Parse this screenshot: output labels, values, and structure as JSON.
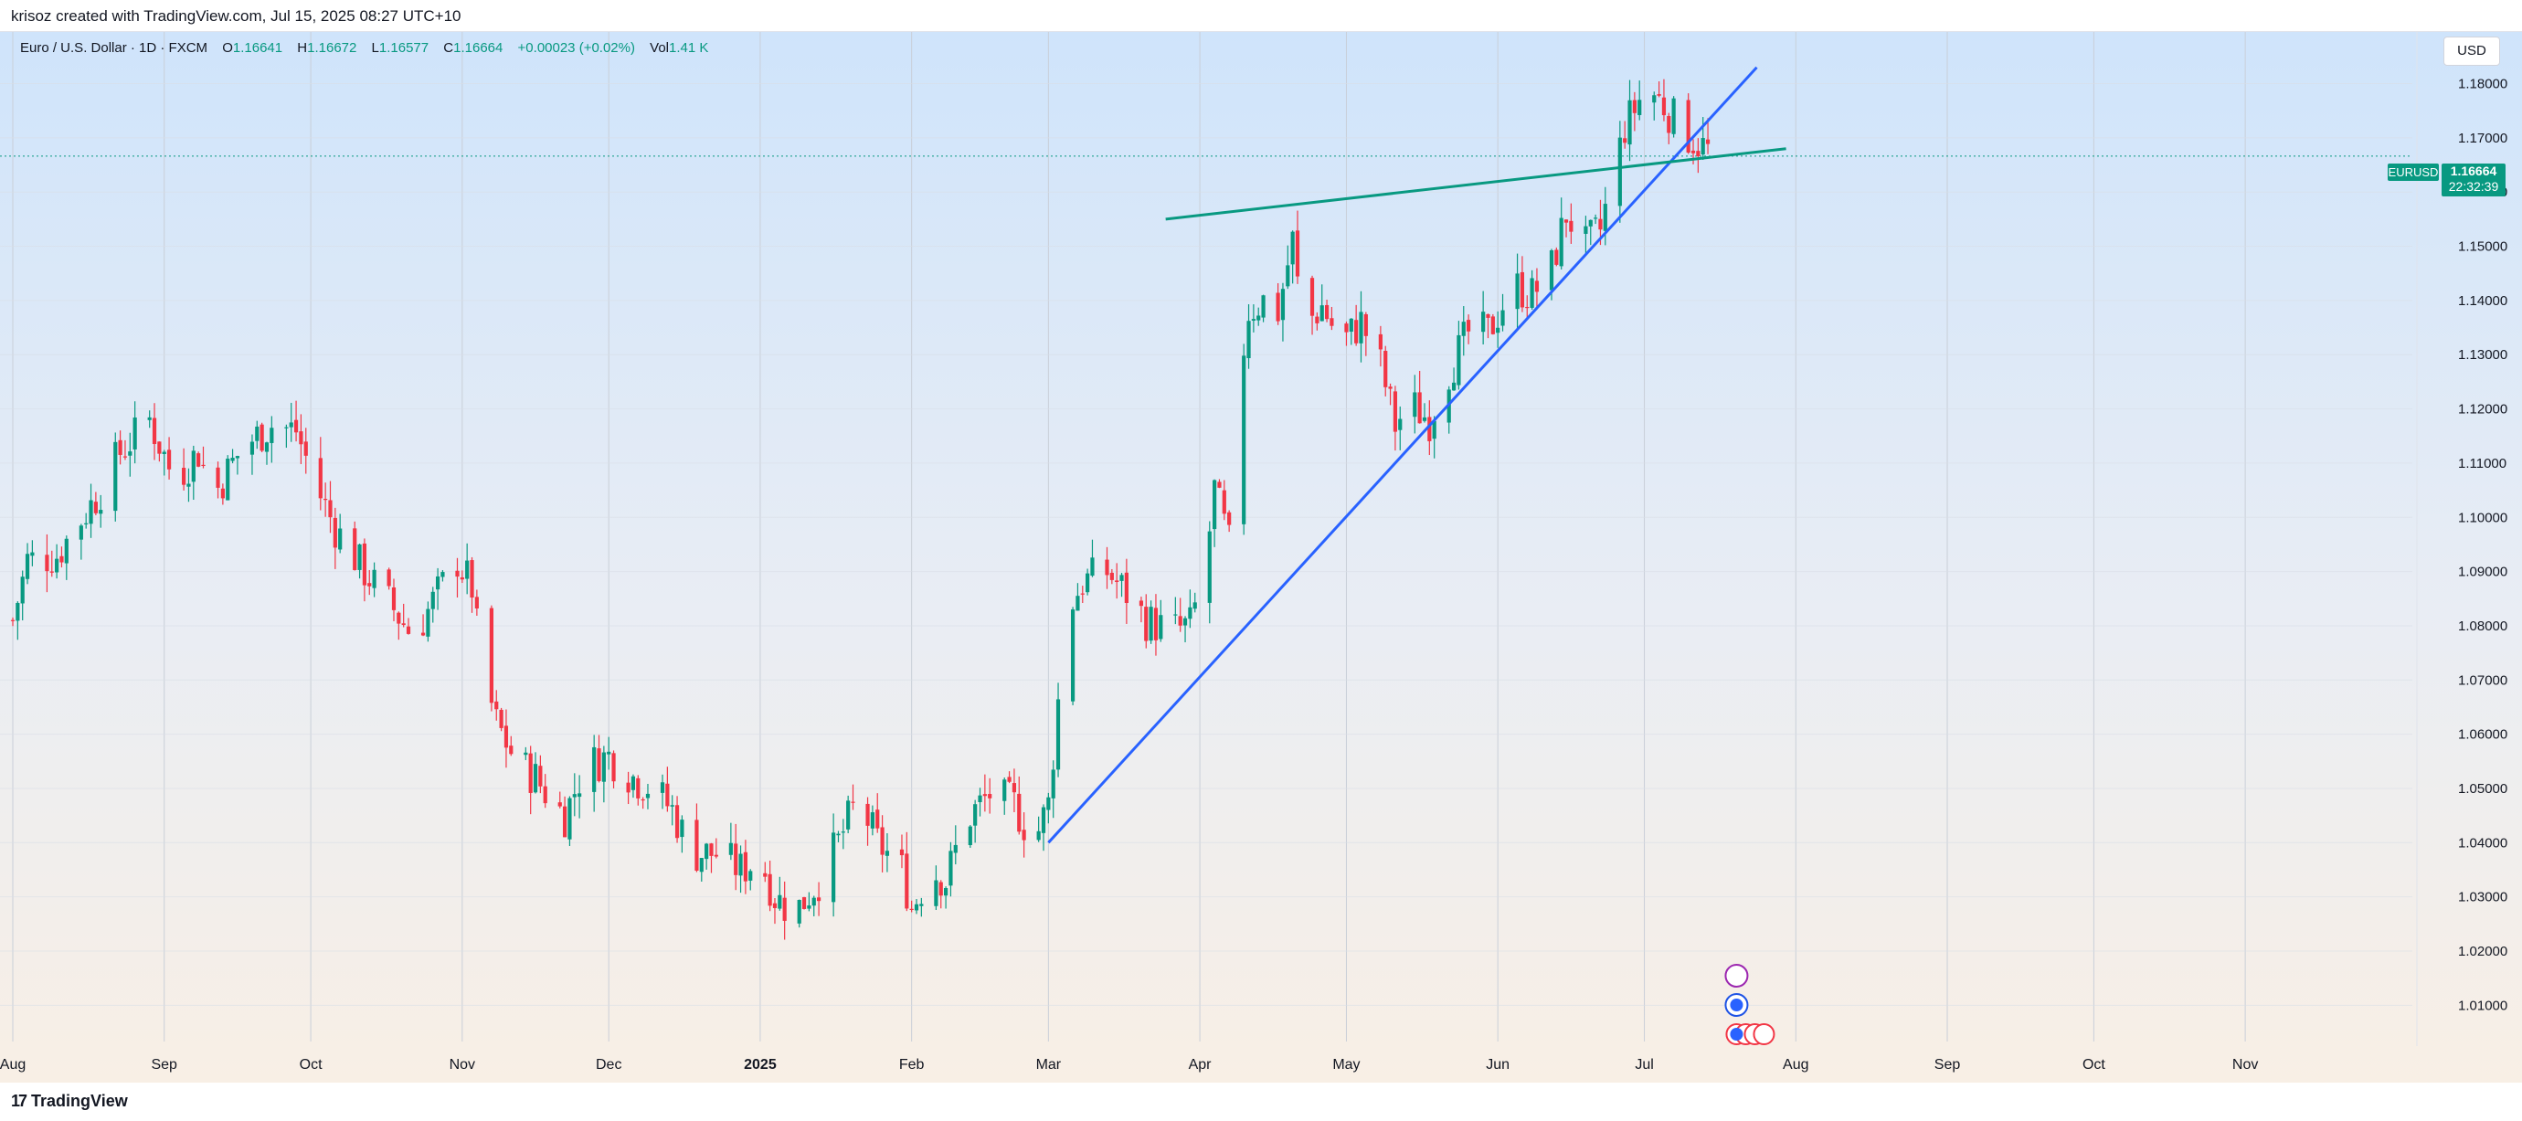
{
  "header": {
    "caption": "krisoz created with TradingView.com, Jul 15, 2025 08:27 UTC+10"
  },
  "legend": {
    "instrument": "Euro / U.S. Dollar · 1D · FXCM",
    "o_label": "O",
    "o_value": "1.16641",
    "h_label": "H",
    "h_value": "1.16672",
    "l_label": "L",
    "l_value": "1.16577",
    "c_label": "C",
    "c_value": "1.16664",
    "change": "+0.00023 (+0.02%)",
    "vol_label": "Vol",
    "vol_value": "1.41 K"
  },
  "currency_button": "USD",
  "price_tag": {
    "symbol": "EURUSD",
    "price": "1.16664",
    "countdown": "22:32:39"
  },
  "footer": {
    "brand": "TradingView"
  },
  "colors": {
    "up": "#089981",
    "down": "#f23645",
    "trendline": "#2962ff",
    "resistance": "#089981"
  },
  "chart_data": {
    "type": "candlestick",
    "symbol": "EURUSD",
    "timeframe": "1D",
    "ylim": [
      1.005,
      1.187
    ],
    "y_ticks": [
      "1.18000",
      "1.17000",
      "1.16000",
      "1.15000",
      "1.14000",
      "1.13000",
      "1.12000",
      "1.11000",
      "1.10000",
      "1.09000",
      "1.08000",
      "1.07000",
      "1.06000",
      "1.05000",
      "1.04000",
      "1.03000",
      "1.02000",
      "1.01000"
    ],
    "x_ticks": [
      "Aug",
      "Sep",
      "Oct",
      "Nov",
      "Dec",
      "2025",
      "Feb",
      "Mar",
      "Apr",
      "May",
      "Jun",
      "Jul",
      "Aug",
      "Sep",
      "Oct",
      "Nov"
    ],
    "x_start_day": 0,
    "x_end_day": 474,
    "x_tick_days": [
      0,
      31,
      61,
      92,
      122,
      153,
      184,
      212,
      243,
      273,
      304,
      334,
      365,
      396,
      426,
      457
    ],
    "last_price": 1.16664,
    "price_path": [
      [
        0,
        1.081
      ],
      [
        3,
        1.092
      ],
      [
        9,
        1.093
      ],
      [
        18,
        1.105
      ],
      [
        22,
        1.112
      ],
      [
        28,
        1.118
      ],
      [
        33,
        1.107
      ],
      [
        38,
        1.112
      ],
      [
        41,
        1.104
      ],
      [
        47,
        1.113
      ],
      [
        53,
        1.117
      ],
      [
        58,
        1.116
      ],
      [
        62,
        1.106
      ],
      [
        66,
        1.098
      ],
      [
        72,
        1.09
      ],
      [
        78,
        1.083
      ],
      [
        82,
        1.078
      ],
      [
        87,
        1.086
      ],
      [
        91,
        1.092
      ],
      [
        94,
        1.087
      ],
      [
        96,
        1.072
      ],
      [
        99,
        1.062
      ],
      [
        103,
        1.055
      ],
      [
        107,
        1.052
      ],
      [
        110,
        1.048
      ],
      [
        113,
        1.045
      ],
      [
        117,
        1.054
      ],
      [
        122,
        1.056
      ],
      [
        127,
        1.052
      ],
      [
        131,
        1.05
      ],
      [
        135,
        1.046
      ],
      [
        139,
        1.038
      ],
      [
        144,
        1.038
      ],
      [
        149,
        1.035
      ],
      [
        153,
        1.037
      ],
      [
        156,
        1.03
      ],
      [
        160,
        1.027
      ],
      [
        165,
        1.033
      ],
      [
        169,
        1.04
      ],
      [
        173,
        1.048
      ],
      [
        177,
        1.04
      ],
      [
        182,
        1.035
      ],
      [
        184,
        1.028
      ],
      [
        188,
        1.035
      ],
      [
        191,
        1.033
      ],
      [
        195,
        1.044
      ],
      [
        200,
        1.049
      ],
      [
        205,
        1.047
      ],
      [
        209,
        1.04
      ],
      [
        212,
        1.047
      ],
      [
        214,
        1.066
      ],
      [
        216,
        1.083
      ],
      [
        219,
        1.088
      ],
      [
        224,
        1.09
      ],
      [
        228,
        1.086
      ],
      [
        232,
        1.081
      ],
      [
        237,
        1.079
      ],
      [
        241,
        1.08
      ],
      [
        244,
        1.09
      ],
      [
        246,
        1.105
      ],
      [
        249,
        1.095
      ],
      [
        251,
        1.125
      ],
      [
        253,
        1.138
      ],
      [
        256,
        1.14
      ],
      [
        259,
        1.138
      ],
      [
        262,
        1.151
      ],
      [
        264,
        1.135
      ],
      [
        268,
        1.139
      ],
      [
        272,
        1.132
      ],
      [
        276,
        1.136
      ],
      [
        280,
        1.128
      ],
      [
        283,
        1.117
      ],
      [
        286,
        1.121
      ],
      [
        290,
        1.118
      ],
      [
        294,
        1.127
      ],
      [
        298,
        1.134
      ],
      [
        302,
        1.134
      ],
      [
        307,
        1.143
      ],
      [
        311,
        1.141
      ],
      [
        315,
        1.146
      ],
      [
        318,
        1.156
      ],
      [
        322,
        1.15
      ],
      [
        325,
        1.153
      ],
      [
        330,
        1.172
      ],
      [
        333,
        1.177
      ],
      [
        335,
        1.179
      ],
      [
        338,
        1.176
      ],
      [
        342,
        1.171
      ],
      [
        345,
        1.169
      ],
      [
        348,
        1.167
      ]
    ],
    "annotations": [
      {
        "type": "trendline",
        "name": "Support trendline",
        "from": [
          212,
          1.04
        ],
        "to": [
          357,
          1.183
        ]
      },
      {
        "type": "trendline",
        "name": "Resistance trendline",
        "from": [
          236,
          1.155
        ],
        "to": [
          363,
          1.168
        ]
      }
    ]
  }
}
